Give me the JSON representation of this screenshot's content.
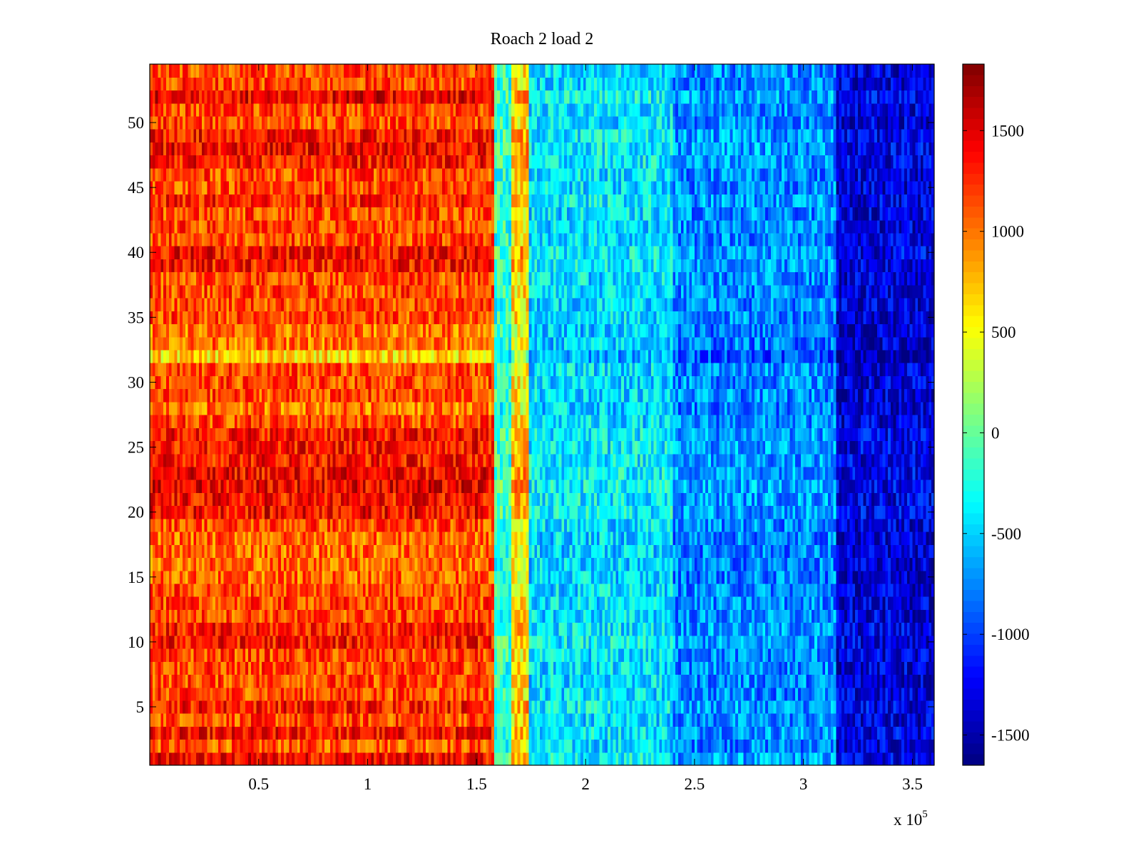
{
  "chart_data": {
    "type": "heatmap",
    "title": "Roach 2 load 2",
    "xlabel": "",
    "ylabel": "",
    "x_multiplier_prefix": "x 10",
    "x_multiplier_exponent": "5",
    "xlim": [
      0,
      3.6
    ],
    "ylim": [
      0.5,
      54.5
    ],
    "x_ticks": [
      {
        "value": 0.5,
        "label": "0.5"
      },
      {
        "value": 1,
        "label": "1"
      },
      {
        "value": 1.5,
        "label": "1.5"
      },
      {
        "value": 2,
        "label": "2"
      },
      {
        "value": 2.5,
        "label": "2.5"
      },
      {
        "value": 3,
        "label": "3"
      },
      {
        "value": 3.5,
        "label": "3.5"
      }
    ],
    "y_ticks": [
      {
        "value": 5,
        "label": "5"
      },
      {
        "value": 10,
        "label": "10"
      },
      {
        "value": 15,
        "label": "15"
      },
      {
        "value": 20,
        "label": "20"
      },
      {
        "value": 25,
        "label": "25"
      },
      {
        "value": 30,
        "label": "30"
      },
      {
        "value": 35,
        "label": "35"
      },
      {
        "value": 40,
        "label": "40"
      },
      {
        "value": 45,
        "label": "45"
      },
      {
        "value": 50,
        "label": "50"
      }
    ],
    "colorbar": {
      "colormap": "jet",
      "clim": [
        -1650,
        1830
      ],
      "ticks": [
        {
          "value": 1500,
          "label": "1500"
        },
        {
          "value": 1000,
          "label": "1000"
        },
        {
          "value": 500,
          "label": "500"
        },
        {
          "value": 0,
          "label": "0"
        },
        {
          "value": -500,
          "label": "-500"
        },
        {
          "value": -1000,
          "label": "-1000"
        },
        {
          "value": -1500,
          "label": "-1500"
        }
      ]
    },
    "rows": 54,
    "x_regions": [
      {
        "x_start": 0.0,
        "x_end": 1.58,
        "approx_value": 1150
      },
      {
        "x_start": 1.58,
        "x_end": 1.66,
        "approx_value": -200
      },
      {
        "x_start": 1.66,
        "x_end": 1.74,
        "approx_value": 600
      },
      {
        "x_start": 1.74,
        "x_end": 2.4,
        "approx_value": -450
      },
      {
        "x_start": 2.4,
        "x_end": 3.15,
        "approx_value": -750
      },
      {
        "x_start": 3.15,
        "x_end": 3.6,
        "approx_value": -1350
      }
    ],
    "row_offsets": [
      {
        "row": 1,
        "value": 250
      },
      {
        "row": 2,
        "value": -50
      },
      {
        "row": 3,
        "value": 200
      },
      {
        "row": 5,
        "value": 200
      },
      {
        "row": 10,
        "value": 200
      },
      {
        "row": 11,
        "value": 150
      },
      {
        "row": 15,
        "value": -100
      },
      {
        "row": 16,
        "value": -100
      },
      {
        "row": 17,
        "value": -100
      },
      {
        "row": 18,
        "value": -100
      },
      {
        "row": 20,
        "value": 250
      },
      {
        "row": 21,
        "value": 200
      },
      {
        "row": 22,
        "value": 300
      },
      {
        "row": 23,
        "value": 250
      },
      {
        "row": 24,
        "value": 200
      },
      {
        "row": 25,
        "value": 200
      },
      {
        "row": 26,
        "value": 200
      },
      {
        "row": 28,
        "value": -150
      },
      {
        "row": 32,
        "value": -500
      },
      {
        "row": 33,
        "value": -150
      },
      {
        "row": 34,
        "value": -150
      },
      {
        "row": 39,
        "value": 200
      },
      {
        "row": 40,
        "value": 250
      },
      {
        "row": 44,
        "value": 150
      },
      {
        "row": 47,
        "value": 200
      },
      {
        "row": 48,
        "value": 250
      },
      {
        "row": 49,
        "value": 200
      },
      {
        "row": 52,
        "value": 300
      }
    ]
  }
}
